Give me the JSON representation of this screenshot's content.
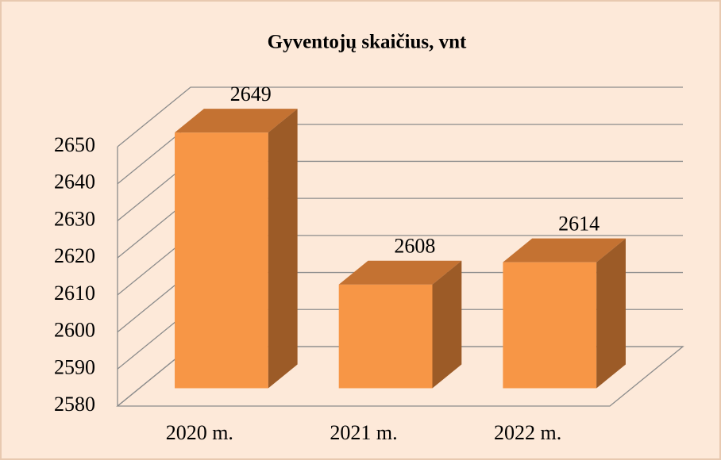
{
  "chart_data": {
    "type": "bar3d",
    "title": "Gyventojų skaičius, vnt",
    "categories": [
      "2020 m.",
      "2021 m.",
      "2022 m."
    ],
    "values": [
      2649,
      2608,
      2614
    ],
    "color": "#f79646",
    "ylim": [
      2580,
      2650
    ],
    "yticks": [
      2580,
      2590,
      2600,
      2610,
      2620,
      2630,
      2640,
      2650
    ],
    "grid": true
  }
}
